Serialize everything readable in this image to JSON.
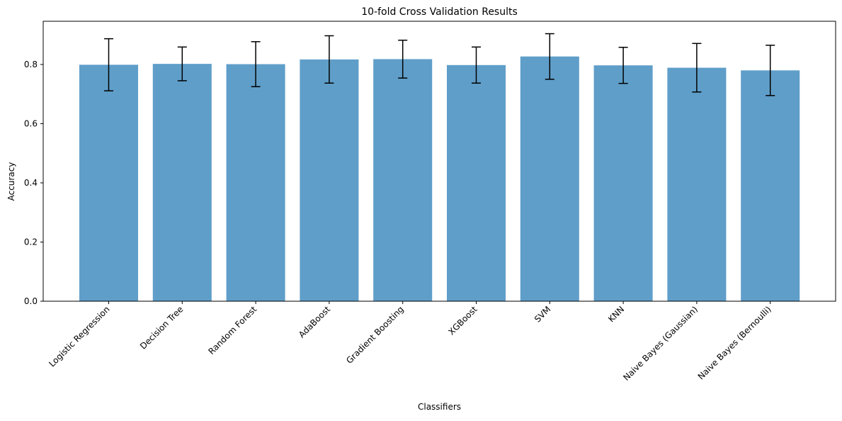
{
  "chart_data": {
    "type": "bar",
    "title": "10-fold Cross Validation Results",
    "xlabel": "Classifiers",
    "ylabel": "Accuracy",
    "ylim": [
      0,
      0.946
    ],
    "yticks": [
      0.0,
      0.2,
      0.4,
      0.6,
      0.8
    ],
    "ytick_labels": [
      "0.0",
      "0.2",
      "0.4",
      "0.6",
      "0.8"
    ],
    "categories": [
      "Logistic Regression",
      "Decision Tree",
      "Random Forest",
      "AdaBoost",
      "Gradient Boosting",
      "XGBoost",
      "SVM",
      "KNN",
      "Naive Bayes (Gaussian)",
      "Naive Bayes (Bernoulli)"
    ],
    "values": [
      0.799,
      0.802,
      0.801,
      0.817,
      0.818,
      0.798,
      0.827,
      0.797,
      0.789,
      0.78
    ],
    "errors": [
      0.088,
      0.057,
      0.076,
      0.08,
      0.064,
      0.061,
      0.077,
      0.061,
      0.082,
      0.085
    ],
    "bar_color": "#5f9ec9",
    "error_color": "#000000",
    "grid": false,
    "legend": null
  }
}
